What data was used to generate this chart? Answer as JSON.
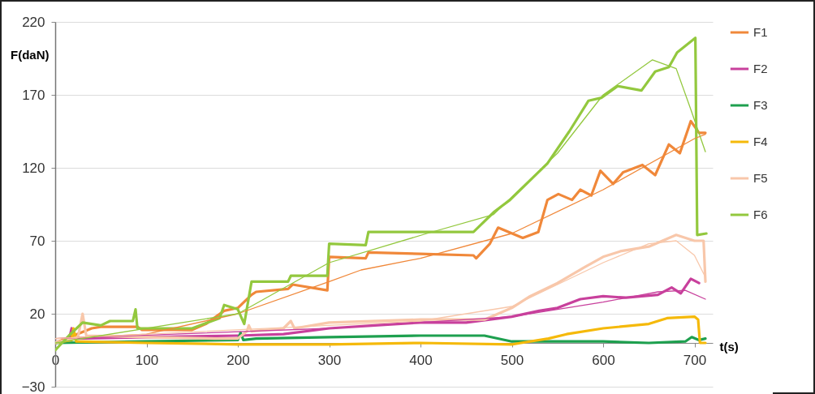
{
  "chart_data": {
    "type": "line",
    "xlabel": "t(s)",
    "ylabel": "F(daN)",
    "xlim": [
      0,
      720
    ],
    "ylim": [
      -30,
      220
    ],
    "xticks": [
      0,
      100,
      200,
      300,
      400,
      500,
      600,
      700
    ],
    "yticks": [
      -30,
      20,
      70,
      120,
      170,
      220
    ],
    "grid": "y",
    "legend": "right",
    "series": [
      {
        "name": "F1",
        "color": "#f0883a",
        "x": [
          0,
          20,
          40,
          50,
          90,
          95,
          150,
          165,
          185,
          200,
          215,
          220,
          255,
          260,
          298,
          300,
          340,
          343,
          400,
          458,
          461,
          476,
          485,
          512,
          529,
          539,
          551,
          566,
          575,
          587,
          597,
          611,
          622,
          643,
          657,
          672,
          684,
          696,
          705,
          712
        ],
        "values": [
          0,
          5,
          10,
          11,
          11,
          9,
          9,
          13,
          22,
          24,
          33,
          35,
          37,
          40,
          36,
          59,
          58,
          62,
          61,
          60,
          58,
          68,
          79,
          72,
          76,
          98,
          102,
          98,
          105,
          101,
          118,
          109,
          117,
          122,
          115,
          136,
          130,
          152,
          144,
          144
        ]
      },
      {
        "name": "F2",
        "color": "#c8409c",
        "x": [
          0,
          15,
          18,
          22,
          100,
          200,
          250,
          300,
          350,
          400,
          450,
          500,
          530,
          550,
          575,
          600,
          625,
          660,
          675,
          685,
          696,
          705
        ],
        "values": [
          0,
          2,
          10,
          3,
          4,
          5,
          6,
          10,
          12,
          14,
          14,
          18,
          22,
          24,
          30,
          32,
          31,
          33,
          38,
          34,
          44,
          41
        ]
      },
      {
        "name": "F3",
        "color": "#1ea04f",
        "x": [
          0,
          100,
          200,
          203,
          206,
          220,
          300,
          400,
          470,
          500,
          550,
          600,
          650,
          690,
          697,
          705,
          712
        ],
        "values": [
          0,
          1,
          2,
          7,
          2,
          3,
          4,
          5,
          5,
          1,
          1,
          1,
          0,
          1,
          4,
          2,
          3
        ]
      },
      {
        "name": "F4",
        "color": "#f5b90a",
        "x": [
          0,
          18,
          20,
          23,
          100,
          200,
          300,
          400,
          500,
          510,
          540,
          560,
          600,
          650,
          670,
          700,
          704,
          706,
          712
        ],
        "values": [
          0,
          2,
          10,
          1,
          0,
          -1,
          -1,
          0,
          -1,
          0,
          3,
          6,
          10,
          13,
          17,
          18,
          16,
          0,
          0
        ]
      },
      {
        "name": "F5",
        "color": "#f8c7aa",
        "x": [
          0,
          25,
          30,
          34,
          100,
          175,
          200,
          210,
          212,
          215,
          250,
          258,
          262,
          300,
          400,
          470,
          500,
          520,
          550,
          580,
          600,
          620,
          650,
          680,
          700,
          710,
          712
        ],
        "values": [
          0,
          4,
          20,
          5,
          4,
          3,
          3,
          8,
          12,
          8,
          10,
          15,
          10,
          14,
          16,
          16,
          24,
          32,
          41,
          52,
          59,
          63,
          66,
          74,
          70,
          70,
          42
        ]
      },
      {
        "name": "F6",
        "color": "#93c83e",
        "x": [
          0,
          15,
          30,
          50,
          60,
          85,
          88,
          90,
          150,
          180,
          185,
          200,
          207,
          215,
          255,
          258,
          298,
          300,
          340,
          343,
          400,
          458,
          481,
          498,
          539,
          563,
          584,
          598,
          616,
          642,
          657,
          672,
          681,
          701,
          703,
          713
        ],
        "values": [
          -5,
          5,
          14,
          12,
          15,
          15,
          23,
          10,
          10,
          17,
          26,
          23,
          13,
          42,
          42,
          46,
          46,
          68,
          67,
          76,
          76,
          76,
          90,
          98,
          123,
          145,
          166,
          168,
          176,
          173,
          186,
          189,
          199,
          209,
          74,
          75
        ]
      },
      {
        "type": "line",
        "color": "#f0883a",
        "x": [
          0,
          100,
          200,
          300,
          335,
          400,
          500,
          600,
          700,
          712
        ],
        "values": [
          3,
          6,
          20,
          42,
          50,
          58,
          75,
          105,
          140,
          143
        ]
      },
      {
        "type": "line",
        "color": "#c8409c",
        "x": [
          0,
          300,
          500,
          600,
          660,
          690,
          712
        ],
        "values": [
          3,
          10,
          18,
          28,
          35,
          36,
          30
        ]
      },
      {
        "type": "line",
        "color": "#f8c7aa",
        "x": [
          0,
          400,
          500,
          600,
          650,
          680,
          700,
          712
        ],
        "values": [
          3,
          15,
          25,
          55,
          68,
          70,
          60,
          45
        ]
      },
      {
        "type": "line",
        "color": "#93c83e",
        "x": [
          0,
          200,
          300,
          407,
          480,
          550,
          600,
          654,
          680,
          696,
          712
        ],
        "values": [
          0,
          20,
          55,
          75,
          88,
          130,
          170,
          194,
          188,
          160,
          131
        ]
      }
    ]
  }
}
